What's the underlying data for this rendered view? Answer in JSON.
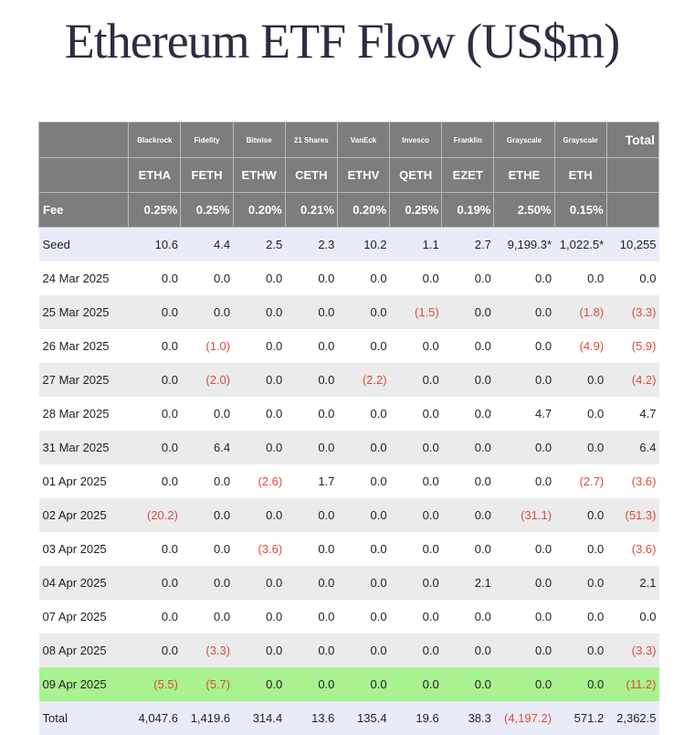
{
  "title": "Ethereum ETF Flow (US$m)",
  "colors": {
    "header_bg": "#7d7d7d",
    "negative": "#e04a3c",
    "highlight_row": "#a8f291",
    "seed_total_row": "#e9ecf8",
    "alt_row": "#ebebeb"
  },
  "issuers": [
    "Blackrock",
    "Fidelity",
    "Bitwise",
    "21 Shares",
    "VanEck",
    "Invesco",
    "Franklin",
    "Grayscale",
    "Grayscale"
  ],
  "total_label": "Total",
  "tickers": [
    "ETHA",
    "FETH",
    "ETHW",
    "CETH",
    "ETHV",
    "QETH",
    "EZET",
    "ETHE",
    "ETH"
  ],
  "fee_label": "Fee",
  "fees": [
    "0.25%",
    "0.25%",
    "0.20%",
    "0.21%",
    "0.20%",
    "0.25%",
    "0.19%",
    "2.50%",
    "0.15%"
  ],
  "rows": [
    {
      "label": "Seed",
      "values": [
        "10.6",
        "4.4",
        "2.5",
        "2.3",
        "10.2",
        "1.1",
        "2.7",
        "9,199.3*",
        "1,022.5*",
        "10,255"
      ]
    },
    {
      "label": "24 Mar 2025",
      "values": [
        "0.0",
        "0.0",
        "0.0",
        "0.0",
        "0.0",
        "0.0",
        "0.0",
        "0.0",
        "0.0",
        "0.0"
      ]
    },
    {
      "label": "25 Mar 2025",
      "values": [
        "0.0",
        "0.0",
        "0.0",
        "0.0",
        "0.0",
        "(1.5)",
        "0.0",
        "0.0",
        "(1.8)",
        "(3.3)"
      ]
    },
    {
      "label": "26 Mar 2025",
      "values": [
        "0.0",
        "(1.0)",
        "0.0",
        "0.0",
        "0.0",
        "0.0",
        "0.0",
        "0.0",
        "(4.9)",
        "(5.9)"
      ]
    },
    {
      "label": "27 Mar 2025",
      "values": [
        "0.0",
        "(2.0)",
        "0.0",
        "0.0",
        "(2.2)",
        "0.0",
        "0.0",
        "0.0",
        "0.0",
        "(4.2)"
      ]
    },
    {
      "label": "28 Mar 2025",
      "values": [
        "0.0",
        "0.0",
        "0.0",
        "0.0",
        "0.0",
        "0.0",
        "0.0",
        "4.7",
        "0.0",
        "4.7"
      ]
    },
    {
      "label": "31 Mar 2025",
      "values": [
        "0.0",
        "6.4",
        "0.0",
        "0.0",
        "0.0",
        "0.0",
        "0.0",
        "0.0",
        "0.0",
        "6.4"
      ]
    },
    {
      "label": "01 Apr 2025",
      "values": [
        "0.0",
        "0.0",
        "(2.6)",
        "1.7",
        "0.0",
        "0.0",
        "0.0",
        "0.0",
        "(2.7)",
        "(3.6)"
      ]
    },
    {
      "label": "02 Apr 2025",
      "values": [
        "(20.2)",
        "0.0",
        "0.0",
        "0.0",
        "0.0",
        "0.0",
        "0.0",
        "(31.1)",
        "0.0",
        "(51.3)"
      ]
    },
    {
      "label": "03 Apr 2025",
      "values": [
        "0.0",
        "0.0",
        "(3.6)",
        "0.0",
        "0.0",
        "0.0",
        "0.0",
        "0.0",
        "0.0",
        "(3.6)"
      ]
    },
    {
      "label": "04 Apr 2025",
      "values": [
        "0.0",
        "0.0",
        "0.0",
        "0.0",
        "0.0",
        "0.0",
        "2.1",
        "0.0",
        "0.0",
        "2.1"
      ]
    },
    {
      "label": "07 Apr 2025",
      "values": [
        "0.0",
        "0.0",
        "0.0",
        "0.0",
        "0.0",
        "0.0",
        "0.0",
        "0.0",
        "0.0",
        "0.0"
      ]
    },
    {
      "label": "08 Apr 2025",
      "values": [
        "0.0",
        "(3.3)",
        "0.0",
        "0.0",
        "0.0",
        "0.0",
        "0.0",
        "0.0",
        "0.0",
        "(3.3)"
      ]
    },
    {
      "label": "09 Apr 2025",
      "values": [
        "(5.5)",
        "(5.7)",
        "0.0",
        "0.0",
        "0.0",
        "0.0",
        "0.0",
        "0.0",
        "0.0",
        "(11.2)"
      ]
    },
    {
      "label": "Total",
      "values": [
        "4,047.6",
        "1,419.6",
        "314.4",
        "13.6",
        "135.4",
        "19.6",
        "38.3",
        "(4,197.2)",
        "571.2",
        "2,362.5"
      ]
    }
  ]
}
